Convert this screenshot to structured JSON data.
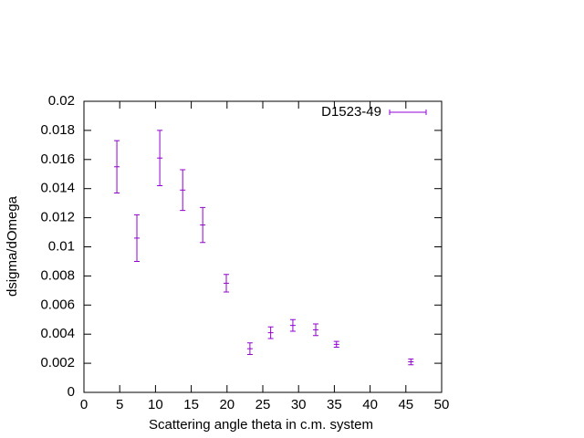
{
  "chart_data": {
    "type": "errorbar",
    "xlabel": "Scattering angle theta in c.m. system",
    "ylabel": "dsigma/dOmega",
    "x": [
      4.6,
      7.4,
      10.6,
      13.8,
      16.6,
      19.9,
      23.2,
      26.1,
      29.2,
      32.4,
      35.3,
      45.7
    ],
    "series": [
      {
        "name": "D1523-49",
        "color": "#9400d3",
        "values": [
          0.0155,
          0.0106,
          0.0161,
          0.0139,
          0.0115,
          0.0075,
          0.003,
          0.0041,
          0.0046,
          0.0043,
          0.0033,
          0.0021
        ],
        "errors": [
          0.0018,
          0.0016,
          0.0019,
          0.0014,
          0.0012,
          0.0006,
          0.0004,
          0.0004,
          0.0004,
          0.0004,
          0.0002,
          0.0002
        ]
      }
    ],
    "xlim": [
      0,
      50
    ],
    "xticks": [
      0,
      5,
      10,
      15,
      20,
      25,
      30,
      35,
      40,
      45,
      50
    ],
    "ylim": [
      0,
      0.02
    ],
    "yticks": [
      0,
      0.002,
      0.004,
      0.006,
      0.008,
      0.01,
      0.012,
      0.014,
      0.016,
      0.018,
      0.02
    ],
    "grid": false,
    "legend": "top-right"
  }
}
